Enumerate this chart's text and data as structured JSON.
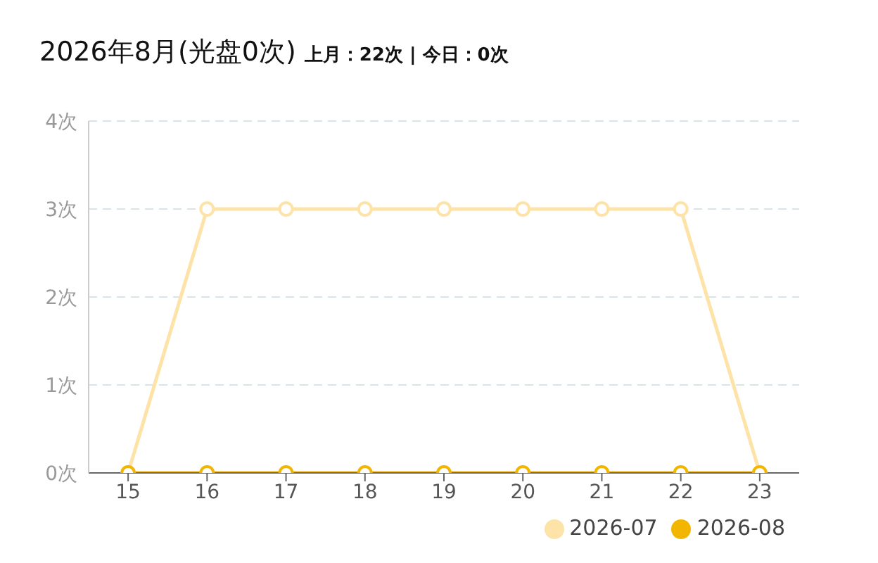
{
  "chart_data": {
    "type": "line",
    "title": "2026年8月(光盘0次)",
    "subtitle": "上月：22次 | 今日：0次",
    "categories": [
      "15",
      "16",
      "17",
      "18",
      "19",
      "20",
      "21",
      "22",
      "23"
    ],
    "series": [
      {
        "name": "2026-07",
        "color": "#fde3a7",
        "values": [
          0,
          3,
          3,
          3,
          3,
          3,
          3,
          3,
          0
        ]
      },
      {
        "name": "2026-08",
        "color": "#f2b600",
        "values": [
          0,
          0,
          0,
          0,
          0,
          0,
          0,
          0,
          0
        ]
      }
    ],
    "ylim": [
      0,
      4
    ],
    "yticks": [
      {
        "value": 0,
        "label": "0次"
      },
      {
        "value": 1,
        "label": "1次"
      },
      {
        "value": 2,
        "label": "2次"
      },
      {
        "value": 3,
        "label": "3次"
      },
      {
        "value": 4,
        "label": "4次"
      }
    ],
    "grid": "y",
    "legend": "bottom right",
    "marker": "circle",
    "line_style": "solid"
  }
}
